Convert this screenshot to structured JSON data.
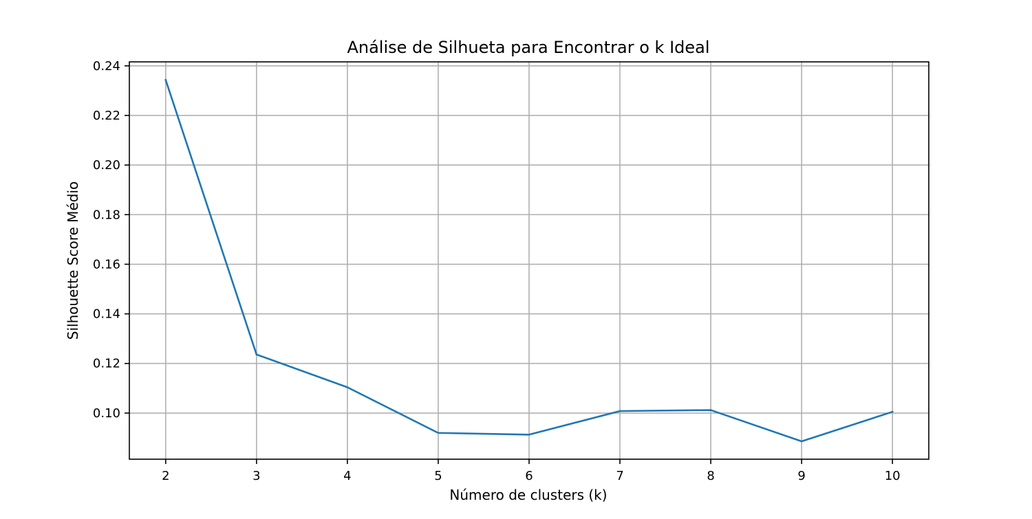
{
  "chart_data": {
    "type": "line",
    "title": "Análise de Silhueta para Encontrar o k Ideal",
    "xlabel": "Número de clusters (k)",
    "ylabel": "Silhouette Score Médio",
    "x": [
      2,
      3,
      4,
      5,
      6,
      7,
      8,
      9,
      10
    ],
    "series": [
      {
        "values": [
          0.2343,
          0.1236,
          0.1104,
          0.092,
          0.0913,
          0.1008,
          0.1012,
          0.0886,
          0.1005
        ],
        "color": "#1f77b4"
      }
    ],
    "xlim": [
      1.6,
      10.4
    ],
    "ylim": [
      0.0814,
      0.2416
    ],
    "xticks": [
      2,
      3,
      4,
      5,
      6,
      7,
      8,
      9,
      10
    ],
    "yticks": [
      0.1,
      0.12,
      0.14,
      0.16,
      0.18,
      0.2,
      0.22,
      0.24
    ],
    "ytick_labels": [
      "0.10",
      "0.12",
      "0.14",
      "0.16",
      "0.18",
      "0.20",
      "0.22",
      "0.24"
    ],
    "grid": true,
    "grid_color": "#b0b0b0",
    "legend": "none"
  }
}
